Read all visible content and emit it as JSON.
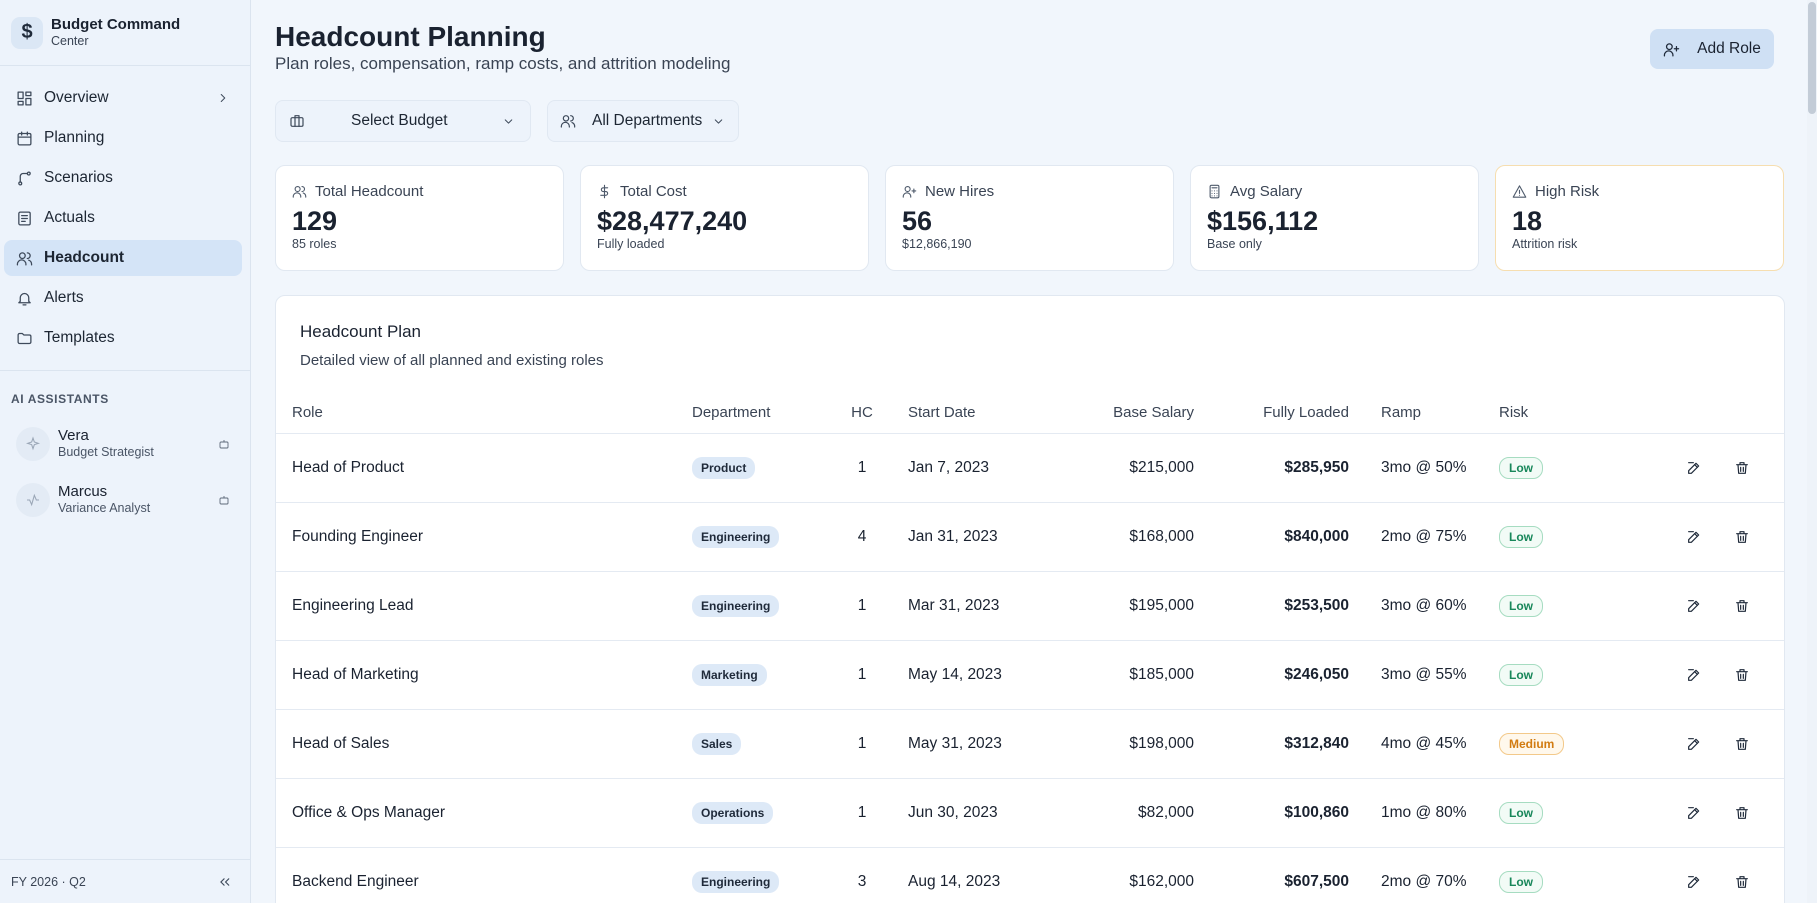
{
  "brand": {
    "title": "Budget Command",
    "subtitle": "Center",
    "logo_icon": "dollar-icon"
  },
  "nav": {
    "items": [
      {
        "label": "Overview",
        "icon": "layout-grid-icon",
        "has_chevron": true
      },
      {
        "label": "Planning",
        "icon": "calendar-icon"
      },
      {
        "label": "Scenarios",
        "icon": "branch-icon"
      },
      {
        "label": "Actuals",
        "icon": "receipt-icon"
      },
      {
        "label": "Headcount",
        "icon": "users-icon",
        "active": true
      },
      {
        "label": "Alerts",
        "icon": "bell-icon"
      },
      {
        "label": "Templates",
        "icon": "folder-icon"
      }
    ]
  },
  "assistants": {
    "section_label": "AI ASSISTANTS",
    "items": [
      {
        "name": "Vera",
        "role": "Budget Strategist"
      },
      {
        "name": "Marcus",
        "role": "Variance Analyst"
      }
    ]
  },
  "footer": {
    "period": "FY 2026 · Q2"
  },
  "header": {
    "title": "Headcount Planning",
    "subtitle": "Plan roles, compensation, ramp costs, and attrition modeling",
    "add_role_label": "Add Role"
  },
  "filters": {
    "budget": "Select Budget",
    "department": "All Departments"
  },
  "stats": [
    {
      "label": "Total Headcount",
      "value": "129",
      "note": "85 roles",
      "icon": "users-icon"
    },
    {
      "label": "Total Cost",
      "value": "$28,477,240",
      "note": "Fully loaded",
      "icon": "dollar-icon"
    },
    {
      "label": "New Hires",
      "value": "56",
      "note": "$12,866,190",
      "icon": "user-plus-icon"
    },
    {
      "label": "Avg Salary",
      "value": "$156,112",
      "note": "Base only",
      "icon": "calculator-icon"
    },
    {
      "label": "High Risk",
      "value": "18",
      "note": "Attrition risk",
      "icon": "warning-icon"
    }
  ],
  "panel": {
    "title": "Headcount Plan",
    "subtitle": "Detailed view of all planned and existing roles",
    "columns": [
      "Role",
      "Department",
      "HC",
      "Start Date",
      "Base Salary",
      "Fully Loaded",
      "Ramp",
      "Risk"
    ],
    "rows": [
      {
        "role": "Head of Product",
        "department": "Product",
        "hc": "1",
        "start": "Jan 7, 2023",
        "base": "$215,000",
        "loaded": "$285,950",
        "ramp": "3mo @ 50%",
        "risk": "Low"
      },
      {
        "role": "Founding Engineer",
        "department": "Engineering",
        "hc": "4",
        "start": "Jan 31, 2023",
        "base": "$168,000",
        "loaded": "$840,000",
        "ramp": "2mo @ 75%",
        "risk": "Low"
      },
      {
        "role": "Engineering Lead",
        "department": "Engineering",
        "hc": "1",
        "start": "Mar 31, 2023",
        "base": "$195,000",
        "loaded": "$253,500",
        "ramp": "3mo @ 60%",
        "risk": "Low"
      },
      {
        "role": "Head of Marketing",
        "department": "Marketing",
        "hc": "1",
        "start": "May 14, 2023",
        "base": "$185,000",
        "loaded": "$246,050",
        "ramp": "3mo @ 55%",
        "risk": "Low"
      },
      {
        "role": "Head of Sales",
        "department": "Sales",
        "hc": "1",
        "start": "May 31, 2023",
        "base": "$198,000",
        "loaded": "$312,840",
        "ramp": "4mo @ 45%",
        "risk": "Medium"
      },
      {
        "role": "Office & Ops Manager",
        "department": "Operations",
        "hc": "1",
        "start": "Jun 30, 2023",
        "base": "$82,000",
        "loaded": "$100,860",
        "ramp": "1mo @ 80%",
        "risk": "Low"
      },
      {
        "role": "Backend Engineer",
        "department": "Engineering",
        "hc": "3",
        "start": "Aug 14, 2023",
        "base": "$162,000",
        "loaded": "$607,500",
        "ramp": "2mo @ 70%",
        "risk": "Low"
      }
    ]
  },
  "colors": {
    "accent": "#d4e4f7",
    "risk_low": "#18875a",
    "risk_medium": "#d27c12",
    "warning_border": "#f6deb0"
  }
}
